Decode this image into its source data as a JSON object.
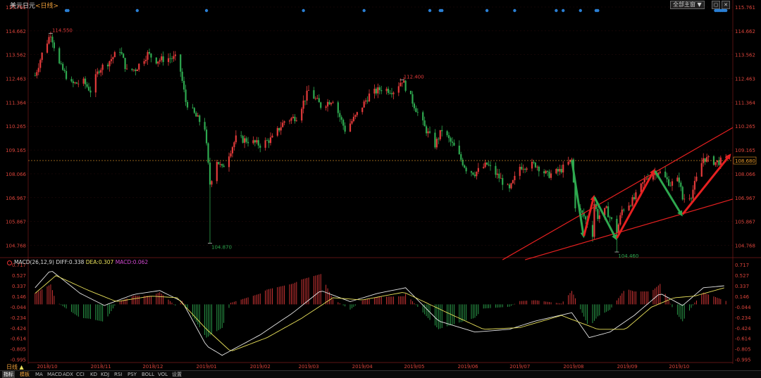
{
  "header": {
    "title": "美元日元",
    "timeframe": "<日线>",
    "btn_all_main": "全部主窗 ▼",
    "icon_minimize": "minimize-icon",
    "icon_close": "close-icon"
  },
  "colors": {
    "up": "#e23a3a",
    "down": "#2ea84f",
    "grid": "#4a1010",
    "axis_text": "#d8433a",
    "macd_white": "#e6e6e6",
    "macd_yellow": "#e8e05a",
    "price_line": "#e89a2a"
  },
  "chart_data": [
    {
      "type": "candlestick",
      "title": "美元日元<日线>",
      "y_ticks": [
        104.768,
        105.867,
        106.967,
        108.066,
        109.165,
        110.265,
        111.364,
        112.463,
        113.562,
        114.662,
        115.761
      ],
      "y_tick_labels": [
        "104.768",
        "105.867",
        "106.967",
        "108.066",
        "109.165",
        "110.265",
        "111.364",
        "112.463",
        "113.562",
        "114.662",
        "115.761"
      ],
      "ylim": [
        104.2,
        115.761
      ],
      "x_labels": [
        "2018/10",
        "2018/11",
        "2018/12",
        "2019/01",
        "2019/02",
        "2019/03",
        "2019/04",
        "2019/05",
        "2019/06",
        "2019/07",
        "2019/08",
        "2019/09",
        "2019/10"
      ],
      "current_price": 108.68,
      "current_price_label": "108.680",
      "annotations": [
        {
          "label": "114.550",
          "value": 114.55,
          "kind": "high"
        },
        {
          "label": "104.870",
          "value": 104.87,
          "kind": "low"
        },
        {
          "label": "112.400",
          "value": 112.4,
          "kind": "high"
        },
        {
          "label": "104.460",
          "value": 104.46,
          "kind": "low"
        }
      ],
      "close_path": [
        [
          "2018/09/24",
          112.6
        ],
        [
          "2018/09/28",
          113.6
        ],
        [
          "2018/10/03",
          114.55
        ],
        [
          "2018/10/08",
          113.1
        ],
        [
          "2018/10/15",
          112.2
        ],
        [
          "2018/10/22",
          112.3
        ],
        [
          "2018/10/26",
          111.9
        ],
        [
          "2018/10/31",
          112.9
        ],
        [
          "2018/11/05",
          113.2
        ],
        [
          "2018/11/12",
          113.8
        ],
        [
          "2018/11/16",
          112.8
        ],
        [
          "2018/11/21",
          112.9
        ],
        [
          "2018/11/28",
          113.6
        ],
        [
          "2018/12/03",
          113.3
        ],
        [
          "2018/12/10",
          113.4
        ],
        [
          "2018/12/14",
          113.4
        ],
        [
          "2018/12/17",
          112.8
        ],
        [
          "2018/12/20",
          111.4
        ],
        [
          "2018/12/26",
          110.7
        ],
        [
          "2018/12/31",
          110.2
        ],
        [
          "2019/01/03",
          107.6
        ],
        [
          "2019/01/07",
          108.7
        ],
        [
          "2019/01/10",
          108.3
        ],
        [
          "2019/01/18",
          109.7
        ],
        [
          "2019/01/25",
          109.6
        ],
        [
          "2019/02/01",
          109.4
        ],
        [
          "2019/02/08",
          109.7
        ],
        [
          "2019/02/15",
          110.5
        ],
        [
          "2019/02/22",
          110.7
        ],
        [
          "2019/03/01",
          111.9
        ],
        [
          "2019/03/08",
          111.2
        ],
        [
          "2019/03/15",
          111.5
        ],
        [
          "2019/03/22",
          110.1
        ],
        [
          "2019/03/28",
          110.7
        ],
        [
          "2019/04/05",
          111.7
        ],
        [
          "2019/04/12",
          112.0
        ],
        [
          "2019/04/19",
          111.9
        ],
        [
          "2019/04/24",
          112.4
        ],
        [
          "2019/04/30",
          111.4
        ],
        [
          "2019/05/07",
          110.2
        ],
        [
          "2019/05/13",
          109.4
        ],
        [
          "2019/05/17",
          110.1
        ],
        [
          "2019/05/24",
          109.3
        ],
        [
          "2019/05/31",
          108.3
        ],
        [
          "2019/06/05",
          108.1
        ],
        [
          "2019/06/12",
          108.5
        ],
        [
          "2019/06/19",
          107.9
        ],
        [
          "2019/06/25",
          107.3
        ],
        [
          "2019/07/01",
          108.4
        ],
        [
          "2019/07/10",
          108.5
        ],
        [
          "2019/07/17",
          108.0
        ],
        [
          "2019/07/24",
          108.2
        ],
        [
          "2019/07/31",
          108.7
        ],
        [
          "2019/08/02",
          106.6
        ],
        [
          "2019/08/07",
          106.1
        ],
        [
          "2019/08/12",
          105.3
        ],
        [
          "2019/08/13",
          106.7
        ],
        [
          "2019/08/15",
          106.1
        ],
        [
          "2019/08/20",
          106.4
        ],
        [
          "2019/08/26",
          105.4
        ],
        [
          "2019/08/29",
          106.4
        ],
        [
          "2019/09/05",
          106.9
        ],
        [
          "2019/09/12",
          107.9
        ],
        [
          "2019/09/19",
          108.2
        ],
        [
          "2019/09/26",
          107.6
        ],
        [
          "2019/10/01",
          107.8
        ],
        [
          "2019/10/03",
          106.9
        ],
        [
          "2019/10/08",
          107.1
        ],
        [
          "2019/10/15",
          108.8
        ],
        [
          "2019/10/22",
          108.6
        ],
        [
          "2019/10/28",
          108.7
        ]
      ],
      "trend_lines": [
        {
          "from": [
            "2019/06/21",
            104.1
          ],
          "to": [
            "2019/11/01",
            110.2
          ],
          "color": "#e62020"
        },
        {
          "from": [
            "2019/07/04",
            104.1
          ],
          "to": [
            "2019/11/01",
            106.9
          ],
          "color": "#e62020"
        }
      ],
      "arrows": [
        {
          "from": [
            "2019/07/31",
            108.7
          ],
          "to": [
            "2019/08/07",
            105.1
          ],
          "color": "#2ea84f"
        },
        {
          "from": [
            "2019/08/07",
            105.2
          ],
          "to": [
            "2019/08/13",
            107.1
          ],
          "color": "#e62020"
        },
        {
          "from": [
            "2019/08/13",
            107.0
          ],
          "to": [
            "2019/08/26",
            105.0
          ],
          "color": "#2ea84f"
        },
        {
          "from": [
            "2019/08/26",
            105.1
          ],
          "to": [
            "2019/09/17",
            108.3
          ],
          "color": "#e62020"
        },
        {
          "from": [
            "2019/09/17",
            108.2
          ],
          "to": [
            "2019/10/03",
            106.1
          ],
          "color": "#2ea84f"
        },
        {
          "from": [
            "2019/10/03",
            106.2
          ],
          "to": [
            "2019/10/31",
            109.0
          ],
          "color": "#e62020"
        }
      ],
      "event_dots": [
        "2018/10/12",
        "2018/10/13",
        "2018/11/22",
        "2019/01/01",
        "2019/02/26",
        "2019/04/02",
        "2019/05/10",
        "2019/05/16",
        "2019/05/17",
        "2019/06/12",
        "2019/06/28",
        "2019/07/22",
        "2019/07/26",
        "2019/08/05",
        "2019/08/14",
        "2019/08/15",
        "2019/10/22",
        "2019/10/23",
        "2019/10/24",
        "2019/10/25",
        "2019/10/26",
        "2019/10/27",
        "2019/10/28"
      ]
    },
    {
      "type": "macd",
      "legend": {
        "name": "MACD(26,12,9)",
        "diff": "DIFF:0.338",
        "dea": "DEA:0.307",
        "macd": "MACD:0.062"
      },
      "y_ticks": [
        -0.995,
        -0.805,
        -0.614,
        -0.424,
        -0.234,
        -0.044,
        0.146,
        0.337,
        0.527,
        0.717
      ],
      "y_tick_labels": [
        "-0.995",
        "-0.805",
        "-0.614",
        "-0.424",
        "-0.234",
        "-0.044",
        "0.146",
        "0.337",
        "0.527",
        "0.717"
      ],
      "ylim": [
        -1.05,
        0.717
      ],
      "diff_path": [
        [
          "2018/09/24",
          0.3
        ],
        [
          "2018/10/03",
          0.62
        ],
        [
          "2018/10/20",
          0.2
        ],
        [
          "2018/11/03",
          -0.02
        ],
        [
          "2018/11/20",
          0.18
        ],
        [
          "2018/12/05",
          0.25
        ],
        [
          "2018/12/18",
          0.05
        ],
        [
          "2019/01/01",
          -0.75
        ],
        [
          "2019/01/10",
          -0.92
        ],
        [
          "2019/02/01",
          -0.55
        ],
        [
          "2019/02/20",
          -0.15
        ],
        [
          "2019/03/08",
          0.25
        ],
        [
          "2019/03/25",
          0.05
        ],
        [
          "2019/04/10",
          0.2
        ],
        [
          "2019/04/26",
          0.3
        ],
        [
          "2019/05/15",
          -0.3
        ],
        [
          "2019/06/05",
          -0.5
        ],
        [
          "2019/06/25",
          -0.45
        ],
        [
          "2019/07/10",
          -0.3
        ],
        [
          "2019/07/31",
          -0.15
        ],
        [
          "2019/08/10",
          -0.6
        ],
        [
          "2019/08/22",
          -0.5
        ],
        [
          "2019/09/05",
          -0.2
        ],
        [
          "2019/09/20",
          0.2
        ],
        [
          "2019/10/03",
          -0.02
        ],
        [
          "2019/10/15",
          0.3
        ],
        [
          "2019/10/28",
          0.338
        ]
      ],
      "dea_path": [
        [
          "2018/09/24",
          0.2
        ],
        [
          "2018/10/06",
          0.52
        ],
        [
          "2018/10/25",
          0.25
        ],
        [
          "2018/11/10",
          0.05
        ],
        [
          "2018/11/30",
          0.15
        ],
        [
          "2018/12/15",
          0.12
        ],
        [
          "2019/01/01",
          -0.45
        ],
        [
          "2019/01/15",
          -0.85
        ],
        [
          "2019/02/05",
          -0.6
        ],
        [
          "2019/02/25",
          -0.25
        ],
        [
          "2019/03/15",
          0.12
        ],
        [
          "2019/04/01",
          0.08
        ],
        [
          "2019/04/25",
          0.22
        ],
        [
          "2019/05/20",
          -0.15
        ],
        [
          "2019/06/10",
          -0.45
        ],
        [
          "2019/07/01",
          -0.42
        ],
        [
          "2019/07/25",
          -0.2
        ],
        [
          "2019/08/15",
          -0.45
        ],
        [
          "2019/08/31",
          -0.45
        ],
        [
          "2019/09/15",
          -0.05
        ],
        [
          "2019/09/28",
          0.12
        ],
        [
          "2019/10/10",
          0.15
        ],
        [
          "2019/10/28",
          0.307
        ]
      ]
    }
  ],
  "tabs": [
    "指标",
    "模板",
    "MA",
    "MACD",
    "ADX",
    "CCI",
    "KD",
    "KDJ",
    "RSI",
    "PSY",
    "BOLL",
    "VOL",
    "设置"
  ],
  "period": {
    "label": "日线",
    "triangle": "▲"
  }
}
